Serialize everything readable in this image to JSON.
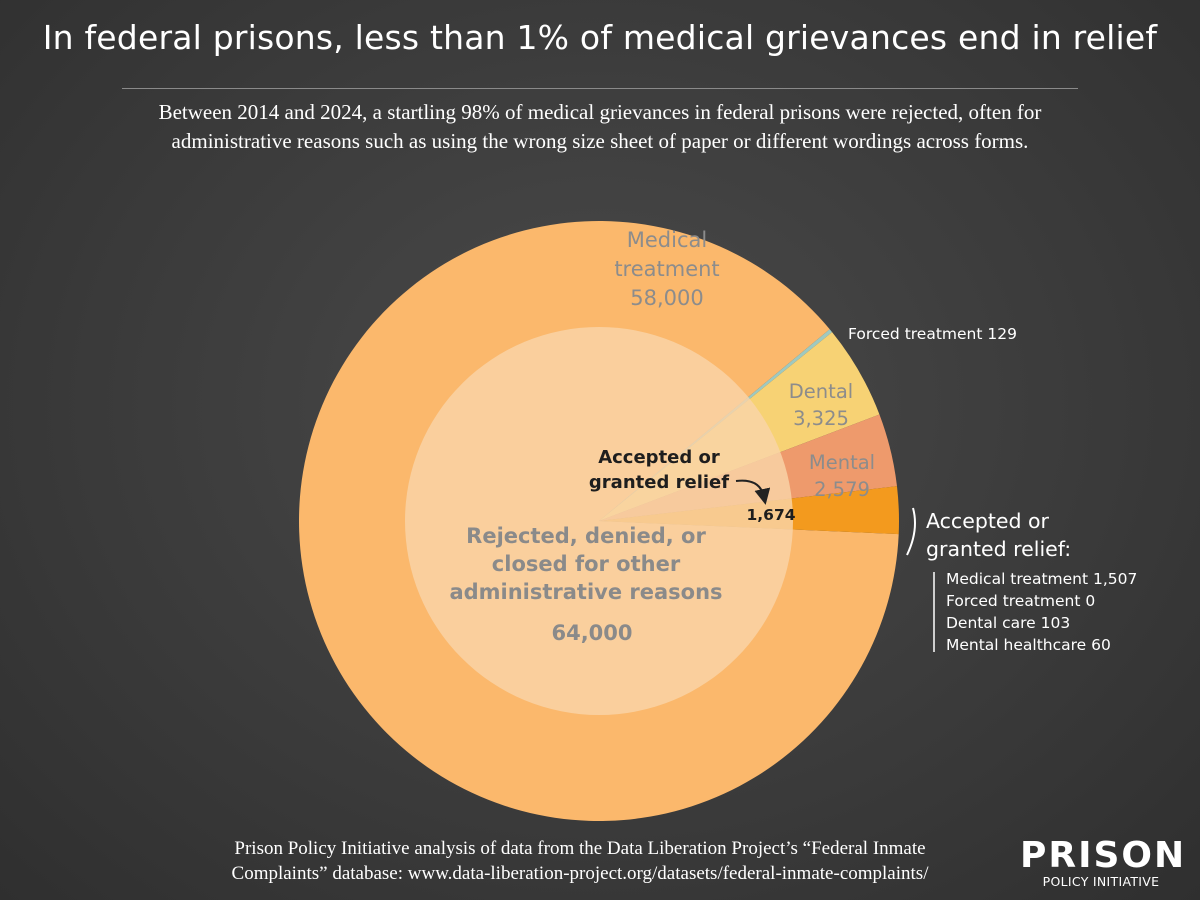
{
  "title": "In federal prisons, less than 1% of medical grievances end in relief",
  "subtitle_lines": [
    "Between 2014 and 2024, a startling 98% of medical grievances in federal prisons were rejected, often for",
    "administrative reasons such as using the wrong size sheet of paper or different wordings across forms."
  ],
  "chart_data": {
    "type": "pie",
    "outer_ring": {
      "slices": [
        {
          "label_lines": [
            "Medical",
            "treatment",
            "58,000"
          ],
          "value": 58000,
          "color": "#fbb86c"
        },
        {
          "label_lines": [
            "Forced treatment 129"
          ],
          "value": 129,
          "color": "#9fc9c0"
        },
        {
          "label_lines": [
            "Dental",
            "3,325"
          ],
          "value": 3325,
          "color": "#f7d274"
        },
        {
          "label_lines": [
            "Mental",
            "2,579"
          ],
          "value": 2579,
          "color": "#ee9a6c"
        },
        {
          "label_lines": [
            "1,674"
          ],
          "value": 1674,
          "color": "#f39a1e"
        }
      ]
    },
    "inner_circle": {
      "label_lines": [
        "Rejected, denied, or",
        "closed for other",
        "administrative reasons",
        "64,000"
      ],
      "value": 64000,
      "color": "#f9d4a8"
    },
    "callout": {
      "label_lines": [
        "Accepted or",
        "granted relief"
      ]
    },
    "relief_breakdown": {
      "title_lines": [
        "Accepted or",
        "granted relief:"
      ],
      "items": [
        {
          "label": "Medical treatment 1,507",
          "value": 1507
        },
        {
          "label": "Forced treatment 0",
          "value": 0
        },
        {
          "label": "Dental care 103",
          "value": 103
        },
        {
          "label": "Mental healthcare 60",
          "value": 60
        }
      ]
    }
  },
  "source_lines": [
    "Prison Policy Initiative analysis of data from the Data Liberation Project’s “Federal Inmate",
    "Complaints” database: www.data-liberation-project.org/datasets/federal-inmate-complaints/"
  ],
  "logo": {
    "line1": "PRISON",
    "line2": "POLICY INITIATIVE"
  }
}
